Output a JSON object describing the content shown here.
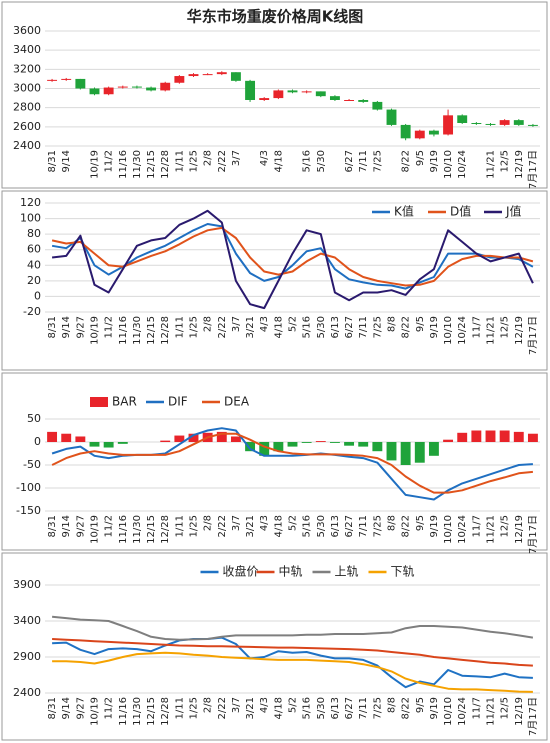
{
  "chart_data": [
    {
      "type": "candlestick",
      "title": "华东市场重废价格周K线图",
      "categories": [
        "8/31",
        "9/14",
        null,
        "10/19",
        "11/2",
        "11/16",
        "11/30",
        "12/15",
        "12/28",
        "1/11",
        "1/25",
        "2/8",
        "2/22",
        "3/7",
        null,
        "4/3",
        "4/18",
        null,
        "5/16",
        "5/30",
        null,
        "6/27",
        "7/11",
        "7/25",
        null,
        "8/22",
        "9/5",
        "9/19",
        "10/10",
        "10/24",
        null,
        "11/21",
        "12/5",
        "12/19",
        "7月17日"
      ],
      "open": [
        3080,
        3090,
        3100,
        3000,
        2940,
        3010,
        3020,
        3010,
        2980,
        3060,
        3130,
        3150,
        3150,
        3170,
        3080,
        2880,
        2900,
        2980,
        2960,
        2970,
        2920,
        2880,
        2880,
        2860,
        2780,
        2620,
        2480,
        2560,
        2520,
        2720,
        2640,
        2630,
        2620,
        2670,
        2620
      ],
      "high": [
        3100,
        3110,
        3100,
        3010,
        3020,
        3030,
        3030,
        3020,
        3070,
        3140,
        3160,
        3160,
        3180,
        3170,
        3090,
        2910,
        2990,
        2990,
        2980,
        2970,
        2930,
        2890,
        2890,
        2870,
        2790,
        2630,
        2570,
        2570,
        2780,
        2730,
        2650,
        2640,
        2680,
        2680,
        2630
      ],
      "low": [
        3070,
        3080,
        2990,
        2930,
        2930,
        3000,
        3000,
        2970,
        2970,
        3050,
        3120,
        3140,
        3140,
        3070,
        2860,
        2870,
        2890,
        2950,
        2950,
        2910,
        2870,
        2870,
        2850,
        2770,
        2610,
        2460,
        2470,
        2500,
        2510,
        2630,
        2620,
        2610,
        2610,
        2610,
        2600
      ],
      "close": [
        3090,
        3100,
        3000,
        2940,
        3010,
        3020,
        3010,
        2980,
        3060,
        3130,
        3150,
        3150,
        3170,
        3080,
        2880,
        2900,
        2980,
        2960,
        2970,
        2920,
        2880,
        2880,
        2860,
        2780,
        2620,
        2480,
        2560,
        2520,
        2720,
        2640,
        2630,
        2620,
        2670,
        2620,
        2610
      ],
      "up_color": "#e8242a",
      "down_color": "#1fa33a",
      "ylim": [
        2400,
        3600
      ],
      "yticks": [
        2400,
        2600,
        2800,
        3000,
        3200,
        3400,
        3600
      ],
      "grid": true
    },
    {
      "type": "line",
      "categories": [
        "8/31",
        "9/14",
        "9/27",
        "10/19",
        "11/2",
        "11/16",
        "11/30",
        "12/15",
        "12/28",
        "1/11",
        "1/25",
        "2/8",
        "2/22",
        "3/7",
        "3/21",
        "4/3",
        "4/18",
        "5/2",
        "5/16",
        "5/30",
        "6/13",
        "6/27",
        "7/11",
        "7/25",
        "8/8",
        "8/22",
        "9/5",
        "9/19",
        "10/10",
        "10/24",
        "11/7",
        "11/21",
        "12/5",
        "12/19",
        "7月17日"
      ],
      "series": [
        {
          "name": "K值",
          "color": "#1f6fc1",
          "values": [
            65,
            62,
            75,
            40,
            28,
            38,
            50,
            58,
            65,
            75,
            85,
            93,
            90,
            55,
            30,
            20,
            25,
            40,
            58,
            62,
            35,
            22,
            18,
            15,
            14,
            10,
            18,
            25,
            55,
            55,
            55,
            50,
            50,
            48,
            38
          ]
        },
        {
          "name": "D值",
          "color": "#e0531b",
          "values": [
            72,
            68,
            70,
            55,
            40,
            38,
            45,
            52,
            58,
            67,
            77,
            85,
            88,
            75,
            50,
            32,
            28,
            32,
            45,
            55,
            50,
            35,
            25,
            20,
            17,
            14,
            15,
            20,
            38,
            48,
            52,
            52,
            50,
            50,
            45
          ]
        },
        {
          "name": "J值",
          "color": "#2a1a6e",
          "values": [
            50,
            52,
            78,
            15,
            5,
            35,
            65,
            72,
            75,
            92,
            100,
            110,
            95,
            20,
            -10,
            -15,
            20,
            55,
            85,
            80,
            5,
            -5,
            5,
            5,
            8,
            2,
            22,
            35,
            85,
            70,
            55,
            45,
            50,
            55,
            17
          ]
        }
      ],
      "ylim": [
        -20,
        120
      ],
      "yticks": [
        -20,
        0,
        20,
        40,
        60,
        80,
        100,
        120
      ],
      "grid": true,
      "legend": "upper-right"
    },
    {
      "type": "combo",
      "categories": [
        "8/31",
        "9/14",
        "9/27",
        "10/19",
        "11/2",
        "11/16",
        "11/30",
        "12/15",
        "12/28",
        "1/11",
        "1/25",
        "2/8",
        "2/22",
        "3/7",
        "3/21",
        "4/3",
        "4/18",
        "5/2",
        "5/16",
        "5/30",
        "6/13",
        "6/27",
        "7/11",
        "7/25",
        "8/8",
        "8/22",
        "9/5",
        "9/19",
        "10/10",
        "10/24",
        "11/7",
        "11/21",
        "12/5",
        "12/19",
        "7月17日"
      ],
      "series": [
        {
          "name": "BAR",
          "mark": "bar",
          "color": "#e8242a",
          "negative_color": "#1fa33a",
          "values": [
            22,
            18,
            12,
            -10,
            -12,
            -4,
            0,
            0,
            3,
            14,
            18,
            20,
            22,
            12,
            -20,
            -30,
            -20,
            -10,
            -2,
            2,
            -2,
            -8,
            -10,
            -20,
            -40,
            -50,
            -45,
            -30,
            5,
            20,
            25,
            25,
            25,
            22,
            18
          ]
        },
        {
          "name": "DIF",
          "mark": "line",
          "color": "#1f6fc1",
          "values": [
            -25,
            -15,
            -10,
            -30,
            -35,
            -30,
            -28,
            -28,
            -25,
            -5,
            15,
            25,
            30,
            25,
            -15,
            -30,
            -30,
            -30,
            -28,
            -25,
            -28,
            -32,
            -35,
            -45,
            -80,
            -115,
            -120,
            -125,
            -105,
            -90,
            -80,
            -70,
            -60,
            -50,
            -48
          ]
        },
        {
          "name": "DEA",
          "mark": "line",
          "color": "#e0531b",
          "values": [
            -50,
            -35,
            -25,
            -20,
            -25,
            -28,
            -28,
            -28,
            -28,
            -20,
            -5,
            10,
            18,
            18,
            5,
            -10,
            -20,
            -25,
            -27,
            -27,
            -27,
            -28,
            -30,
            -35,
            -50,
            -75,
            -95,
            -110,
            -110,
            -105,
            -95,
            -85,
            -77,
            -68,
            -65
          ]
        }
      ],
      "ylim": [
        -150,
        50
      ],
      "yticks": [
        -150,
        -100,
        -50,
        0,
        50
      ],
      "grid": true,
      "legend": "upper-left"
    },
    {
      "type": "line",
      "categories": [
        "8/31",
        "9/14",
        "9/27",
        "10/19",
        "11/2",
        "11/16",
        "11/30",
        "12/15",
        "12/28",
        "1/11",
        "1/25",
        "2/8",
        "2/22",
        "3/7",
        "3/21",
        "4/3",
        "4/18",
        "5/2",
        "5/16",
        "5/30",
        "6/13",
        "6/27",
        "7/11",
        "7/25",
        "8/8",
        "8/22",
        "9/5",
        "9/19",
        "10/10",
        "10/24",
        "11/7",
        "11/21",
        "12/5",
        "12/19",
        "7月17日"
      ],
      "series": [
        {
          "name": "收盘价",
          "color": "#1f72c4",
          "values": [
            3090,
            3100,
            3000,
            2940,
            3010,
            3020,
            3010,
            2980,
            3060,
            3130,
            3150,
            3150,
            3170,
            3080,
            2880,
            2900,
            2980,
            2960,
            2970,
            2920,
            2880,
            2880,
            2860,
            2780,
            2620,
            2480,
            2560,
            2520,
            2720,
            2640,
            2630,
            2620,
            2670,
            2620,
            2610
          ]
        },
        {
          "name": "中轨",
          "color": "#d9451b",
          "values": [
            3150,
            3140,
            3130,
            3120,
            3110,
            3100,
            3090,
            3080,
            3070,
            3060,
            3055,
            3050,
            3050,
            3045,
            3040,
            3035,
            3030,
            3030,
            3025,
            3020,
            3015,
            3010,
            3000,
            2990,
            2970,
            2950,
            2930,
            2900,
            2880,
            2860,
            2840,
            2820,
            2810,
            2790,
            2780
          ]
        },
        {
          "name": "上轨",
          "color": "#7f7f7f",
          "values": [
            3460,
            3440,
            3420,
            3410,
            3400,
            3330,
            3260,
            3180,
            3150,
            3140,
            3145,
            3150,
            3180,
            3200,
            3200,
            3200,
            3200,
            3200,
            3210,
            3210,
            3220,
            3220,
            3220,
            3230,
            3240,
            3300,
            3330,
            3330,
            3320,
            3310,
            3280,
            3250,
            3230,
            3200,
            3170
          ]
        },
        {
          "name": "下轨",
          "color": "#f5a200",
          "values": [
            2840,
            2840,
            2830,
            2810,
            2850,
            2900,
            2940,
            2950,
            2960,
            2950,
            2930,
            2920,
            2900,
            2890,
            2880,
            2870,
            2860,
            2860,
            2860,
            2850,
            2840,
            2830,
            2800,
            2760,
            2700,
            2600,
            2540,
            2500,
            2460,
            2450,
            2450,
            2440,
            2430,
            2420,
            2415
          ]
        }
      ],
      "ylim": [
        2400,
        3900
      ],
      "yticks": [
        2400,
        2900,
        3400,
        3900
      ],
      "grid": true,
      "legend": "upper-center"
    }
  ]
}
